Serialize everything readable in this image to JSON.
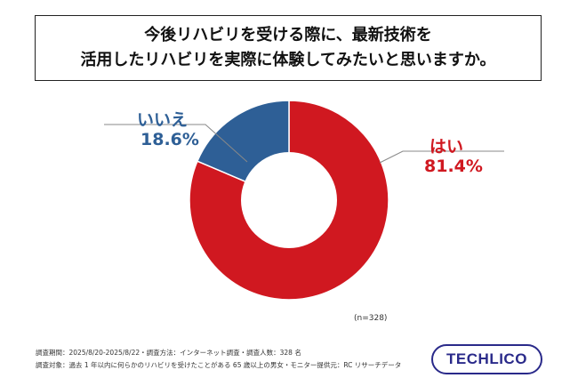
{
  "title": {
    "line1": "今後リハビリを受ける際に、最新技術を",
    "line2": "活用したリハビリを実際に体験してみたいと思いますか。"
  },
  "chart_data": {
    "type": "pie",
    "donut": true,
    "slices": [
      {
        "label": "はい",
        "value": 81.4,
        "value_label": "81.4%",
        "color": "#d01820"
      },
      {
        "label": "いいえ",
        "value": 18.6,
        "value_label": "18.6%",
        "color": "#2e5f96"
      }
    ],
    "note": "(n=328)"
  },
  "footer": {
    "line1": "調査期間：2025/8/20-2025/8/22・調査方法：インターネット調査・調査人数：328 名",
    "line2": "調査対象：過去 1 年以内に何らかのリハビリを受けたことがある 65 歳以上の男女・モニター提供元：RC リサーチデータ"
  },
  "logo": {
    "text": "TECHLICO"
  },
  "colors": {
    "yes": "#d01820",
    "no": "#2e5f96"
  }
}
